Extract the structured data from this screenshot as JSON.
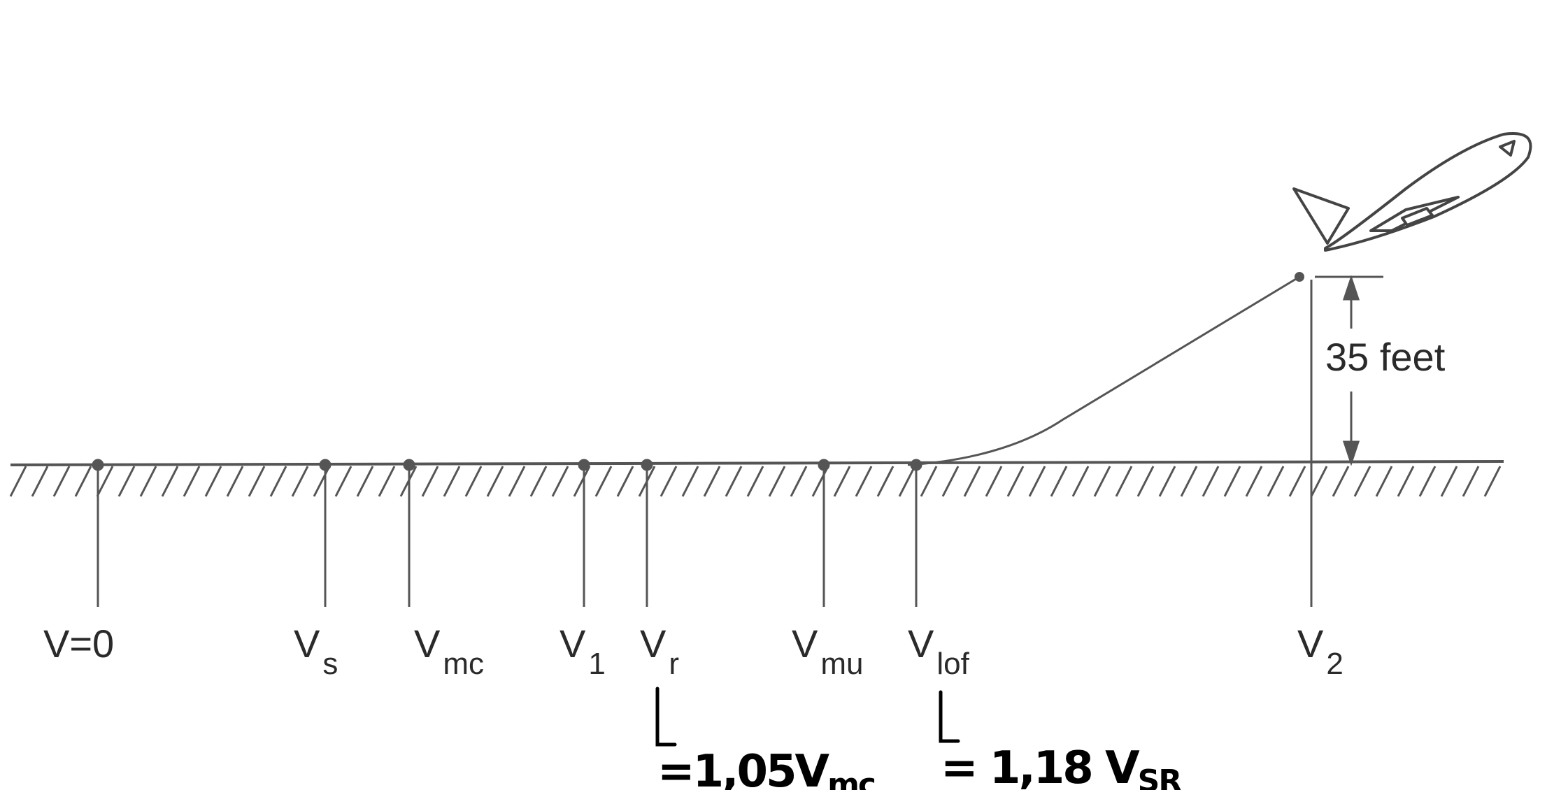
{
  "diagram": {
    "markers": [
      {
        "id": "v0",
        "main": "V=0",
        "sub": ""
      },
      {
        "id": "vs",
        "main": "V",
        "sub": "s"
      },
      {
        "id": "vmc",
        "main": "V",
        "sub": "mc"
      },
      {
        "id": "v1",
        "main": "V",
        "sub": "1"
      },
      {
        "id": "vr",
        "main": "V",
        "sub": "r"
      },
      {
        "id": "vmu",
        "main": "V",
        "sub": "mu"
      },
      {
        "id": "vlof",
        "main": "V",
        "sub": "lof"
      },
      {
        "id": "v2",
        "main": "V",
        "sub": "2"
      }
    ],
    "height_label": "35 feet"
  },
  "annotations": {
    "vr_note": {
      "prefix": "=1,05V",
      "sub": "mc"
    },
    "vlof_note": {
      "prefix": "= 1,18 V",
      "sub": "SR"
    }
  },
  "colors": {
    "line": "#555555",
    "ink": "#000000"
  }
}
